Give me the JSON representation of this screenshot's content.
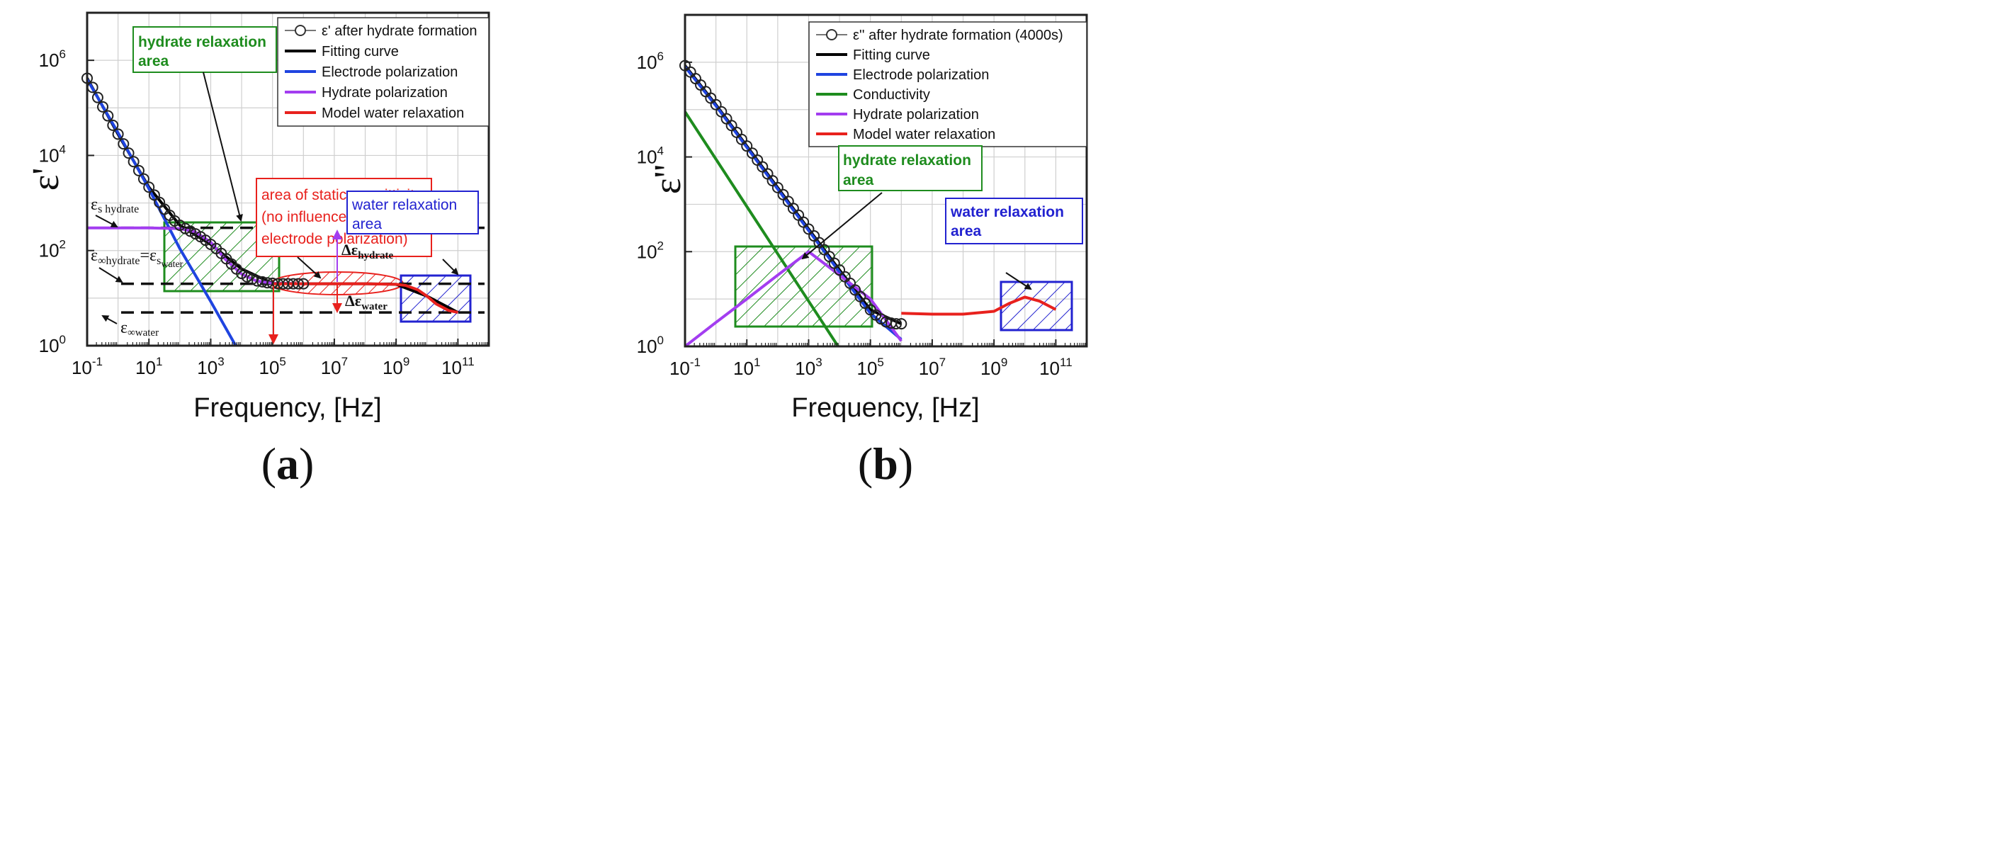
{
  "chart_data": [
    {
      "panel": "a",
      "type": "line",
      "xscale": "log",
      "yscale": "log",
      "xlim": [
        0.1,
        1000000000000.0
      ],
      "ylim": [
        1,
        10000000.0
      ],
      "xlabel": "Frequency, [Hz]",
      "ylabel": "ε'",
      "sublabel": {
        "open": "(",
        "letter": "a",
        "close": ")"
      },
      "xticks": [
        {
          "b": "10",
          "e": "-1",
          "v": 0.1
        },
        {
          "b": "10",
          "e": "1",
          "v": 10
        },
        {
          "b": "10",
          "e": "3",
          "v": 1000
        },
        {
          "b": "10",
          "e": "5",
          "v": 100000
        },
        {
          "b": "10",
          "e": "7",
          "v": 10000000
        },
        {
          "b": "10",
          "e": "9",
          "v": 1000000000
        },
        {
          "b": "10",
          "e": "11",
          "v": 100000000000
        }
      ],
      "yticks": [
        {
          "b": "10",
          "e": "0",
          "v": 1
        },
        {
          "b": "10",
          "e": "2",
          "v": 100
        },
        {
          "b": "10",
          "e": "4",
          "v": 10000
        },
        {
          "b": "10",
          "e": "6",
          "v": 1000000
        }
      ],
      "legend": [
        {
          "label": "ε' after hydrate formation",
          "color": "#333333",
          "style": "circle"
        },
        {
          "label": "Fitting curve",
          "color": "#000000",
          "style": "line"
        },
        {
          "label": "Electrode polarization",
          "color": "#1f44e0",
          "style": "line"
        },
        {
          "label": "Hydrate polarization",
          "color": "#a33df0",
          "style": "line"
        },
        {
          "label": "Model water relaxation",
          "color": "#e8211d",
          "style": "line"
        }
      ],
      "series": [
        {
          "name": "ε' after hydrate formation",
          "kind": "markers",
          "color": "#222222",
          "x": [
            0.1,
            0.15,
            0.22,
            0.32,
            0.47,
            0.68,
            1,
            1.5,
            2.2,
            3.2,
            4.7,
            6.8,
            10,
            15,
            22,
            32,
            47,
            68,
            100,
            150,
            220,
            320,
            470,
            680,
            1000,
            1500,
            2200,
            3200,
            4700,
            6800,
            10000,
            15000,
            22000,
            32000,
            47000,
            68000,
            100000,
            150000,
            220000,
            320000,
            470000,
            680000,
            1000000
          ],
          "y": [
            420000,
            270000,
            165000,
            105000,
            68000,
            43000,
            28000,
            17500,
            11200,
            7400,
            4800,
            3200,
            2150,
            1470,
            1030,
            740,
            550,
            420,
            340,
            290,
            255,
            225,
            195,
            165,
            135,
            110,
            87,
            67,
            52,
            41,
            33,
            28,
            25,
            23,
            22,
            21,
            20.5,
            20,
            20,
            20,
            20,
            20,
            20
          ]
        },
        {
          "name": "Fitting curve",
          "kind": "line",
          "color": "#000000",
          "x": [
            0.1,
            1,
            10,
            100,
            1000,
            10000,
            100000,
            1000000,
            10000000,
            100000000,
            1000000000,
            10000000000,
            100000000000
          ],
          "y": [
            420000,
            28000,
            2150,
            340,
            135,
            41,
            20.5,
            20,
            20,
            20,
            19.5,
            11,
            5
          ]
        },
        {
          "name": "Electrode polarization",
          "kind": "line",
          "color": "#1f44e0",
          "x": [
            0.1,
            1,
            10,
            100,
            1000,
            10000
          ],
          "y": [
            400000,
            30000,
            2000,
            110,
            8.5,
            0.6
          ]
        },
        {
          "name": "Hydrate polarization",
          "kind": "line",
          "color": "#a33df0",
          "x": [
            0.1,
            1,
            10,
            100,
            300,
            1000,
            3000,
            10000,
            30000,
            100000,
            1000000
          ],
          "y": [
            300,
            300,
            300,
            290,
            250,
            150,
            65,
            32,
            23,
            20.5,
            20
          ]
        },
        {
          "name": "Model water relaxation",
          "kind": "line",
          "color": "#e8211d",
          "x": [
            100000,
            1000000,
            10000000,
            100000000,
            1000000000,
            2000000000,
            5000000000,
            10000000000,
            20000000000,
            50000000000,
            100000000000
          ],
          "y": [
            20,
            20,
            20,
            20,
            19.5,
            18.5,
            15,
            11,
            7.5,
            5.5,
            5
          ]
        }
      ],
      "hlines": [
        {
          "y": 300,
          "color": "#111111",
          "dash": true
        },
        {
          "y": 20,
          "color": "#111111",
          "dash": true
        },
        {
          "y": 5,
          "color": "#111111",
          "dash": true
        }
      ],
      "annotations": {
        "hydrate_box": {
          "line1": "hydrate relaxation",
          "line2": "area",
          "color": "#1e8c1e"
        },
        "static_box": {
          "line1": "area of static permittivity",
          "line2": "(no influence of",
          "line3": "electrode polarization)",
          "color": "#e8211d"
        },
        "water_box": {
          "line1": "water relaxation",
          "line2": "area",
          "color": "#2222d0"
        },
        "eps_s_hydrate": {
          "main": "ε",
          "sub": "s  hydrate"
        },
        "eps_inf_hydrate": {
          "main": "ε",
          "sub1": "∞hydrate",
          "eq": "=ε",
          "sub2": "s",
          "sub3": "water"
        },
        "eps_inf_water": {
          "main": "ε",
          "sub": "∞water"
        },
        "delta_hydrate": {
          "main": "Δε",
          "sub": "hydrate"
        },
        "delta_water": {
          "main": "Δε",
          "sub": "water"
        }
      }
    },
    {
      "panel": "b",
      "type": "line",
      "xscale": "log",
      "yscale": "log",
      "xlim": [
        0.1,
        1000000000000.0
      ],
      "ylim": [
        1,
        10000000.0
      ],
      "xlabel": "Frequency, [Hz]",
      "ylabel": "ε''",
      "sublabel": {
        "open": "(",
        "letter": "b",
        "close": ")"
      },
      "xticks": [
        {
          "b": "10",
          "e": "-1",
          "v": 0.1
        },
        {
          "b": "10",
          "e": "1",
          "v": 10
        },
        {
          "b": "10",
          "e": "3",
          "v": 1000
        },
        {
          "b": "10",
          "e": "5",
          "v": 100000
        },
        {
          "b": "10",
          "e": "7",
          "v": 10000000
        },
        {
          "b": "10",
          "e": "9",
          "v": 1000000000
        },
        {
          "b": "10",
          "e": "11",
          "v": 100000000000
        }
      ],
      "yticks": [
        {
          "b": "10",
          "e": "0",
          "v": 1
        },
        {
          "b": "10",
          "e": "2",
          "v": 100
        },
        {
          "b": "10",
          "e": "4",
          "v": 10000
        },
        {
          "b": "10",
          "e": "6",
          "v": 1000000
        }
      ],
      "legend": [
        {
          "label": "ε'' after hydrate formation (4000s)",
          "color": "#333333",
          "style": "circle"
        },
        {
          "label": "Fitting curve",
          "color": "#000000",
          "style": "line"
        },
        {
          "label": "Electrode polarization",
          "color": "#1f44e0",
          "style": "line"
        },
        {
          "label": "Conductivity",
          "color": "#1e8c1e",
          "style": "line"
        },
        {
          "label": "Hydrate polarization",
          "color": "#a33df0",
          "style": "line"
        },
        {
          "label": "Model water relaxation",
          "color": "#e8211d",
          "style": "line"
        }
      ],
      "series": [
        {
          "name": "ε'' after hydrate formation (4000s)",
          "kind": "markers",
          "color": "#222222",
          "x": [
            0.1,
            0.15,
            0.22,
            0.32,
            0.47,
            0.68,
            1,
            1.5,
            2.2,
            3.2,
            4.7,
            6.8,
            10,
            15,
            22,
            32,
            47,
            68,
            100,
            150,
            220,
            320,
            470,
            680,
            1000,
            1500,
            2200,
            3200,
            4700,
            6800,
            10000,
            15000,
            22000,
            32000,
            47000,
            68000,
            100000,
            150000,
            220000,
            320000,
            470000,
            680000,
            1000000
          ],
          "y": [
            850000,
            620000,
            450000,
            330000,
            240000,
            175000,
            127000,
            90000,
            64000,
            46000,
            33000,
            23500,
            17000,
            12000,
            8600,
            6200,
            4400,
            3150,
            2250,
            1600,
            1150,
            820,
            590,
            420,
            300,
            215,
            155,
            110,
            79,
            57,
            41,
            29.5,
            21.5,
            15.5,
            11.2,
            8.1,
            5.9,
            4.6,
            3.8,
            3.3,
            3.1,
            3.0,
            3.0
          ]
        },
        {
          "name": "Fitting curve",
          "kind": "line",
          "color": "#000000",
          "x": [
            0.1,
            1,
            10,
            100,
            1000,
            10000,
            100000,
            1000000
          ],
          "y": [
            850000,
            127000,
            17000,
            2250,
            300,
            41,
            5.9,
            3.0
          ]
        },
        {
          "name": "Electrode polarization",
          "kind": "line",
          "color": "#1f44e0",
          "x": [
            0.1,
            1,
            10,
            100,
            1000,
            10000,
            100000,
            1000000
          ],
          "y": [
            800000,
            120000,
            16000,
            2100,
            280,
            37,
            5,
            1.4
          ]
        },
        {
          "name": "Conductivity",
          "kind": "line",
          "color": "#1e8c1e",
          "x": [
            0.1,
            1,
            10,
            100,
            1000,
            10000,
            100000
          ],
          "y": [
            90000,
            9000,
            900,
            90,
            9,
            0.9,
            0.09
          ]
        },
        {
          "name": "Hydrate polarization",
          "kind": "line",
          "color": "#a33df0",
          "x": [
            0.1,
            1,
            10,
            100,
            1000,
            10000,
            100000,
            1000000
          ],
          "y": [
            1,
            3.2,
            10,
            32,
            100,
            32,
            10,
            1.3
          ]
        },
        {
          "name": "Model water relaxation",
          "kind": "line",
          "color": "#e8211d",
          "x": [
            1000000,
            10000000,
            100000000,
            1000000000,
            3000000000,
            10000000000,
            30000000000,
            100000000000
          ],
          "y": [
            5,
            4.8,
            4.8,
            5.5,
            8,
            11,
            9,
            6
          ]
        }
      ],
      "hlines": [],
      "annotations": {
        "hydrate_box": {
          "line1": "hydrate relaxation",
          "line2": "area",
          "color": "#1e8c1e"
        },
        "water_box": {
          "line1": "water relaxation",
          "line2": "area",
          "color": "#2222d0"
        }
      }
    }
  ]
}
